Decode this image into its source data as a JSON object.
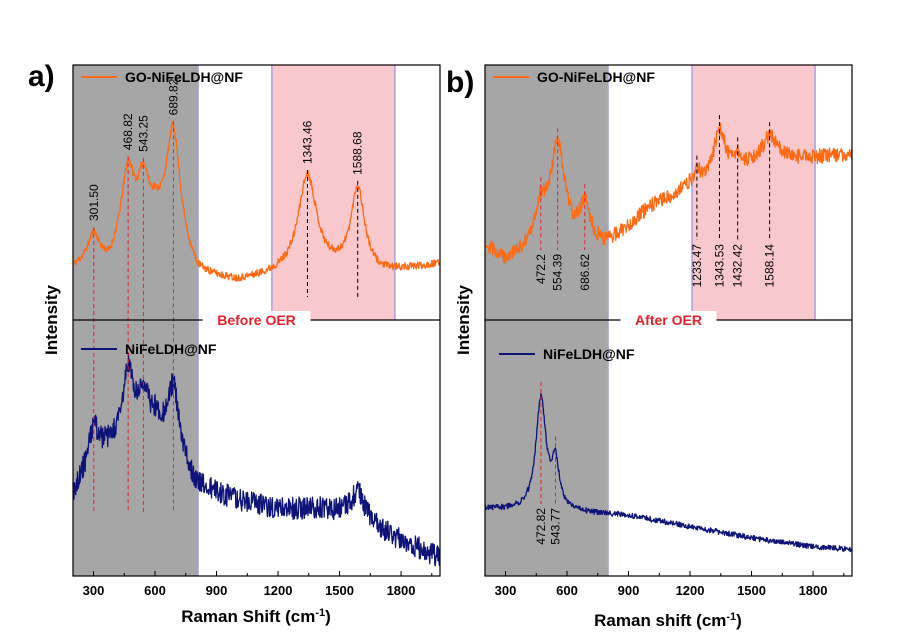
{
  "colors": {
    "go": "#ff6a13",
    "ni": "#0d1378",
    "gray_band": "#a6a6a6",
    "pink_band": "#f8c8cc",
    "band_edge": "#a8a0e0",
    "red_dash": "#e8202a",
    "black_dash": "#000000",
    "separator_text": "#e8202a"
  },
  "chart_data": [
    {
      "type": "line",
      "panel_label": "a)",
      "x_axis": {
        "label": "Raman Shift (cm",
        "label_sup": "-1",
        "label_tail": ")",
        "range": [
          200,
          1990
        ],
        "ticks": [
          "300",
          "600",
          "900",
          "1200",
          "1500",
          "1800"
        ]
      },
      "y_axis": {
        "label": "Intensity",
        "ticks": []
      },
      "separator_label": "Before OER",
      "bands": [
        {
          "color": "gray",
          "from": 200,
          "to": 810
        },
        {
          "color": "pink",
          "from": 1170,
          "to": 1770
        }
      ],
      "series": [
        {
          "name": "GO-NiFeLDH@NF",
          "color": "orange",
          "noise": 0.018,
          "baseline": [
            [
              200,
              0.16
            ],
            [
              300,
              0.22
            ],
            [
              380,
              0.18
            ],
            [
              430,
              0.28
            ],
            [
              600,
              0.4
            ],
            [
              810,
              0.12
            ],
            [
              1000,
              0.09
            ],
            [
              1200,
              0.12
            ],
            [
              1500,
              0.14
            ],
            [
              1700,
              0.13
            ],
            [
              1990,
              0.18
            ]
          ],
          "peaks": [
            {
              "x": 301.5,
              "h": 0.1,
              "w": 30
            },
            {
              "x": 468.82,
              "h": 0.33,
              "w": 35
            },
            {
              "x": 543.25,
              "h": 0.22,
              "w": 30
            },
            {
              "x": 689.82,
              "h": 0.56,
              "w": 40
            },
            {
              "x": 1343.46,
              "h": 0.48,
              "w": 55
            },
            {
              "x": 1588.68,
              "h": 0.41,
              "w": 40
            }
          ]
        },
        {
          "name": "NiFeLDH@NF",
          "color": "navy",
          "noise": 0.05,
          "baseline": [
            [
              200,
              0.37
            ],
            [
              300,
              0.55
            ],
            [
              420,
              0.6
            ],
            [
              600,
              0.7
            ],
            [
              810,
              0.4
            ],
            [
              1000,
              0.34
            ],
            [
              1200,
              0.3
            ],
            [
              1400,
              0.3
            ],
            [
              1600,
              0.27
            ],
            [
              1750,
              0.18
            ],
            [
              1990,
              0.08
            ]
          ],
          "peaks": [
            {
              "x": 301.5,
              "h": 0.12,
              "w": 25
            },
            {
              "x": 468.82,
              "h": 0.3,
              "w": 30
            },
            {
              "x": 543.25,
              "h": 0.15,
              "w": 25
            },
            {
              "x": 689.82,
              "h": 0.28,
              "w": 30
            },
            {
              "x": 1588.68,
              "h": 0.1,
              "w": 40
            }
          ]
        }
      ],
      "peak_labels": [
        {
          "x": 301.5,
          "text": "301.50",
          "color": "red",
          "pos": "above"
        },
        {
          "x": 468.82,
          "text": "468.82",
          "color": "red",
          "pos": "above"
        },
        {
          "x": 543.25,
          "text": "543.25",
          "color": "red",
          "pos": "above"
        },
        {
          "x": 689.82,
          "text": "689.82",
          "color": "red",
          "pos": "above"
        },
        {
          "x": 1343.46,
          "text": "1343.46",
          "color": "black",
          "pos": "above"
        },
        {
          "x": 1588.68,
          "text": "1588.68",
          "color": "black",
          "pos": "above"
        }
      ],
      "grid": false
    },
    {
      "type": "line",
      "panel_label": "b)",
      "x_axis": {
        "label": "Raman shift (cm",
        "label_sup": "-1",
        "label_tail": ")",
        "range": [
          200,
          1990
        ],
        "ticks": [
          "300",
          "600",
          "900",
          "1200",
          "1500",
          "1800"
        ]
      },
      "y_axis": {
        "label": "Intensity",
        "ticks": []
      },
      "separator_label": "After OER",
      "bands": [
        {
          "color": "gray",
          "from": 200,
          "to": 800
        },
        {
          "color": "pink",
          "from": 1210,
          "to": 1810
        }
      ],
      "series": [
        {
          "name": "GO-NiFeLDH@NF",
          "color": "orange",
          "noise": 0.035,
          "baseline": [
            [
              200,
              0.3
            ],
            [
              300,
              0.22
            ],
            [
              400,
              0.25
            ],
            [
              800,
              0.3
            ],
            [
              900,
              0.38
            ],
            [
              1000,
              0.47
            ],
            [
              1200,
              0.57
            ],
            [
              1400,
              0.63
            ],
            [
              1600,
              0.69
            ],
            [
              1990,
              0.73
            ]
          ],
          "peaks": [
            {
              "x": 472.2,
              "h": 0.18,
              "w": 35
            },
            {
              "x": 554.39,
              "h": 0.48,
              "w": 45
            },
            {
              "x": 686.62,
              "h": 0.18,
              "w": 30
            },
            {
              "x": 1233.47,
              "h": 0.05,
              "w": 25
            },
            {
              "x": 1343.53,
              "h": 0.22,
              "w": 35
            },
            {
              "x": 1432.42,
              "h": 0.06,
              "w": 30
            },
            {
              "x": 1588.14,
              "h": 0.12,
              "w": 50
            }
          ]
        },
        {
          "name": "NiFeLDH@NF",
          "color": "navy",
          "noise": 0.012,
          "baseline": [
            [
              200,
              0.3
            ],
            [
              380,
              0.29
            ],
            [
              700,
              0.28
            ],
            [
              900,
              0.27
            ],
            [
              1200,
              0.22
            ],
            [
              1500,
              0.17
            ],
            [
              1800,
              0.13
            ],
            [
              1990,
              0.12
            ]
          ],
          "peaks": [
            {
              "x": 472.82,
              "h": 0.5,
              "w": 30
            },
            {
              "x": 543.77,
              "h": 0.2,
              "w": 22
            }
          ]
        }
      ],
      "peak_labels": [
        {
          "x": 472.2,
          "text": "472.2",
          "color": "red",
          "pos": "below"
        },
        {
          "x": 554.39,
          "text": "554.39",
          "color": "red",
          "pos": "below"
        },
        {
          "x": 686.62,
          "text": "686.62",
          "color": "red",
          "pos": "below"
        },
        {
          "x": 1233.47,
          "text": "1233.47",
          "color": "black",
          "pos": "below"
        },
        {
          "x": 1343.53,
          "text": "1343.53",
          "color": "black",
          "pos": "below"
        },
        {
          "x": 1432.42,
          "text": "1432.42",
          "color": "black",
          "pos": "below"
        },
        {
          "x": 1588.14,
          "text": "1588.14",
          "color": "black",
          "pos": "below"
        },
        {
          "x": 472.82,
          "text": "472.82",
          "color": "red",
          "pos": "below"
        },
        {
          "x": 543.77,
          "text": "543.77",
          "color": "red",
          "pos": "below"
        }
      ],
      "grid": false
    }
  ]
}
